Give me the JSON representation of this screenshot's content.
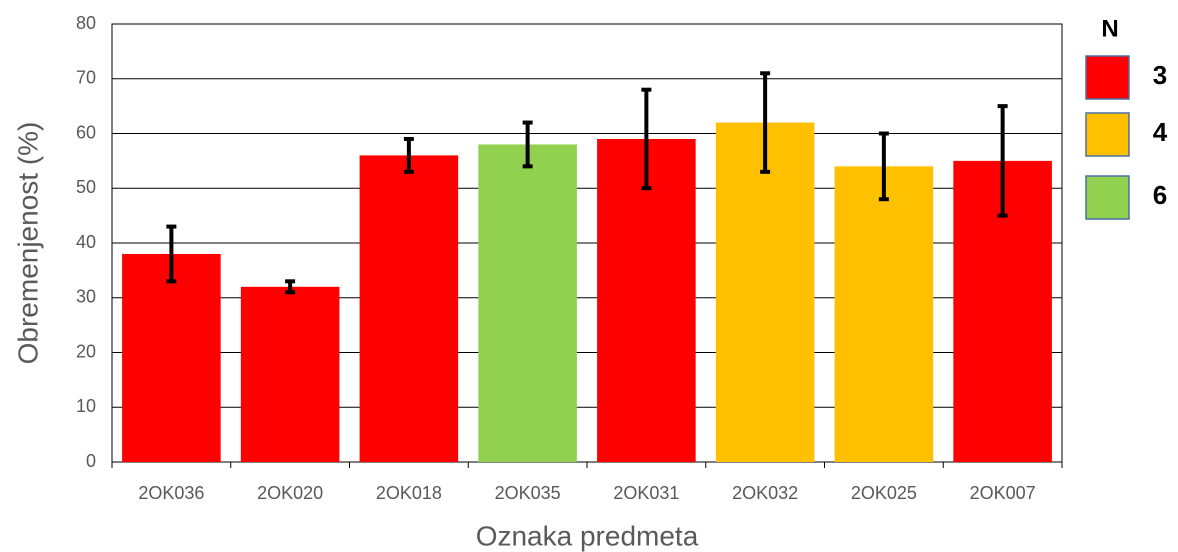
{
  "chart_data": {
    "type": "bar",
    "x_label": "Oznaka predmeta",
    "y_label": "Obremenjenost (%)",
    "categories": [
      "2OK036",
      "2OK020",
      "2OK018",
      "2OK035",
      "2OK031",
      "2OK032",
      "2OK025",
      "2OK007"
    ],
    "legend_title": "N",
    "series": [
      {
        "name": "3",
        "color": "#ff0000",
        "values": [
          38,
          32,
          56,
          null,
          59,
          null,
          null,
          55
        ],
        "errors": [
          5,
          1,
          3,
          null,
          9,
          null,
          null,
          10
        ]
      },
      {
        "name": "4",
        "color": "#ffc000",
        "values": [
          null,
          null,
          null,
          null,
          null,
          62,
          54,
          null
        ],
        "errors": [
          null,
          null,
          null,
          null,
          null,
          9,
          6,
          null
        ]
      },
      {
        "name": "6",
        "color": "#92d050",
        "values": [
          null,
          null,
          null,
          58,
          null,
          null,
          null,
          null
        ],
        "errors": [
          null,
          null,
          null,
          4,
          null,
          null,
          null,
          null
        ]
      }
    ],
    "ylim": [
      0,
      80
    ],
    "yticks": [
      0,
      10,
      20,
      30,
      40,
      50,
      60,
      70,
      80
    ],
    "grid": true,
    "legend": "right"
  }
}
